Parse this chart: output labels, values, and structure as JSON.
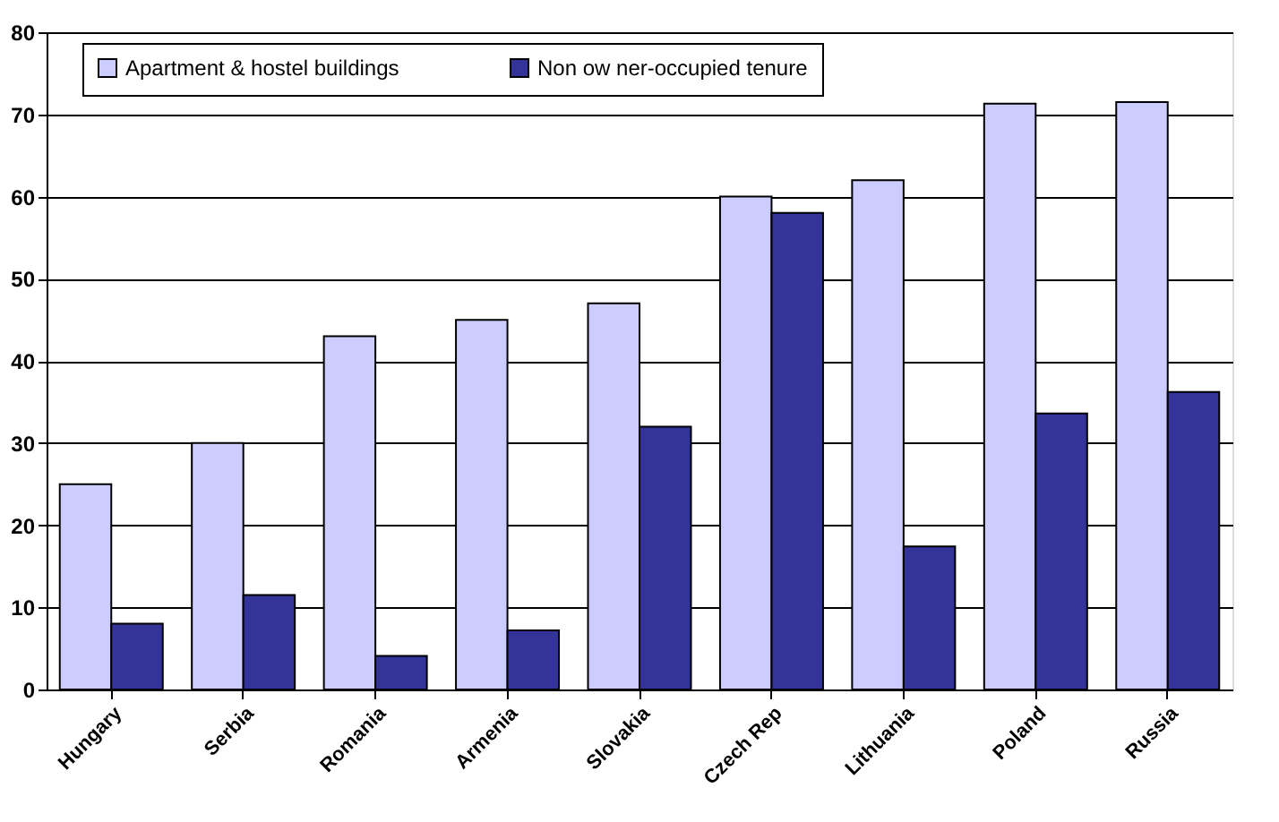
{
  "chart_data": {
    "type": "bar",
    "categories": [
      "Hungary",
      "Serbia",
      "Romania",
      "Armenia",
      "Slovakia",
      "Czech Rep",
      "Lithuania",
      "Poland",
      "Russia"
    ],
    "series": [
      {
        "name": "Apartment & hostel buildings",
        "color": "#ccccff",
        "values": [
          25,
          30,
          43,
          45,
          47,
          60,
          62,
          71.3,
          71.5
        ]
      },
      {
        "name": "Non ow ner-occupied tenure",
        "color": "#333399",
        "values": [
          8,
          11.5,
          4.1,
          7.2,
          32,
          58,
          17.4,
          33.6,
          36.2
        ]
      }
    ],
    "ylim": [
      0,
      80
    ],
    "yticks": [
      0,
      10,
      20,
      30,
      40,
      50,
      60,
      70,
      80
    ],
    "grid": "y",
    "legend": "top"
  }
}
